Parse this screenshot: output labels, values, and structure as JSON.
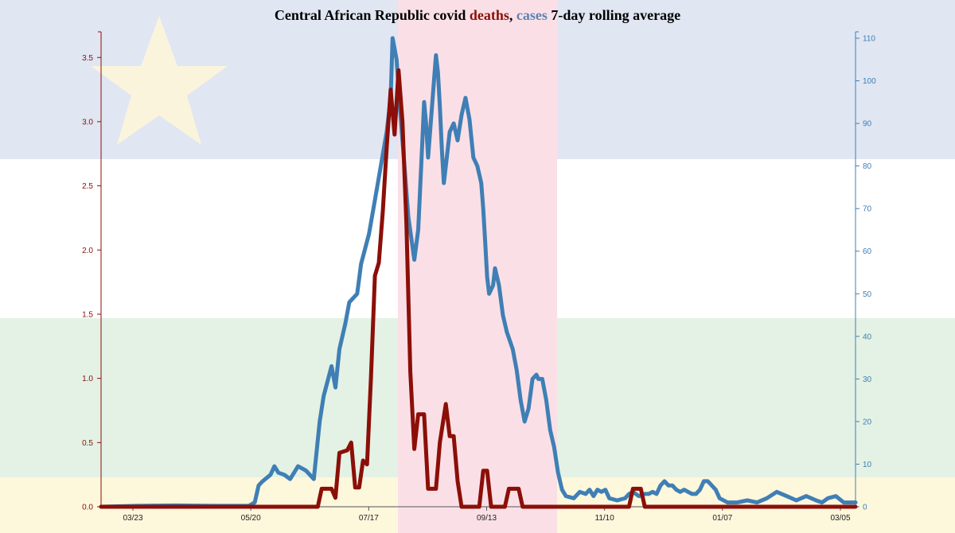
{
  "chart_data": {
    "type": "line",
    "title": {
      "prefix": "Central African Republic covid ",
      "deaths_word": "deaths",
      "separator": ", ",
      "cases_word": "cases",
      "suffix": " 7-day rolling average"
    },
    "x_ticks": [
      "03/23",
      "05/20",
      "07/17",
      "09/13",
      "11/10",
      "01/07",
      "03/05"
    ],
    "y_left": {
      "min": 0,
      "max": 3.7,
      "ticks": [
        "0.0",
        "0.5",
        "1.0",
        "1.5",
        "2.0",
        "2.5",
        "3.0",
        "3.5"
      ]
    },
    "y_right": {
      "min": 0,
      "max": 111.5,
      "ticks": [
        "0",
        "10",
        "20",
        "30",
        "40",
        "50",
        "60",
        "70",
        "80",
        "90",
        "100",
        "110"
      ]
    },
    "x_range_days": [
      -18,
      365
    ],
    "series": [
      {
        "name": "cases",
        "axis": "right",
        "color": "#3f7fb5",
        "points": [
          [
            -18,
            0
          ],
          [
            0,
            0.2
          ],
          [
            20,
            0.3
          ],
          [
            40,
            0.2
          ],
          [
            57,
            0.2
          ],
          [
            60,
            1
          ],
          [
            62,
            5
          ],
          [
            64,
            6
          ],
          [
            68,
            7.5
          ],
          [
            70,
            9.5
          ],
          [
            72,
            8
          ],
          [
            75,
            7.5
          ],
          [
            78,
            6.5
          ],
          [
            82,
            9.5
          ],
          [
            86,
            8.5
          ],
          [
            90,
            6.5
          ],
          [
            93,
            20
          ],
          [
            95,
            26
          ],
          [
            99,
            33
          ],
          [
            101,
            28
          ],
          [
            103,
            37
          ],
          [
            106,
            43
          ],
          [
            108,
            48
          ],
          [
            112,
            50
          ],
          [
            114,
            57
          ],
          [
            118,
            64
          ],
          [
            121,
            72
          ],
          [
            124,
            80
          ],
          [
            127,
            88
          ],
          [
            129,
            96
          ],
          [
            130,
            110
          ],
          [
            132,
            105
          ],
          [
            134,
            92
          ],
          [
            136,
            80
          ],
          [
            138,
            68
          ],
          [
            141,
            58
          ],
          [
            143,
            65
          ],
          [
            145,
            85
          ],
          [
            146,
            95
          ],
          [
            147,
            90
          ],
          [
            148,
            82
          ],
          [
            149,
            88
          ],
          [
            151,
            100
          ],
          [
            152,
            106
          ],
          [
            153,
            102
          ],
          [
            154,
            94
          ],
          [
            155,
            84
          ],
          [
            156,
            76
          ],
          [
            157,
            80
          ],
          [
            159,
            88
          ],
          [
            161,
            90
          ],
          [
            163,
            86
          ],
          [
            165,
            92
          ],
          [
            167,
            96
          ],
          [
            169,
            91
          ],
          [
            171,
            82
          ],
          [
            173,
            80
          ],
          [
            175,
            76
          ],
          [
            176,
            70
          ],
          [
            177,
            62
          ],
          [
            178,
            54
          ],
          [
            179,
            50
          ],
          [
            181,
            52
          ],
          [
            182,
            56
          ],
          [
            184,
            52
          ],
          [
            186,
            45
          ],
          [
            188,
            41
          ],
          [
            191,
            37
          ],
          [
            193,
            32
          ],
          [
            195,
            25
          ],
          [
            197,
            20
          ],
          [
            199,
            23
          ],
          [
            201,
            30
          ],
          [
            203,
            31
          ],
          [
            204,
            30
          ],
          [
            206,
            30
          ],
          [
            208,
            25
          ],
          [
            210,
            18
          ],
          [
            212,
            14
          ],
          [
            214,
            8
          ],
          [
            216,
            4
          ],
          [
            218,
            2.5
          ],
          [
            222,
            2
          ],
          [
            225,
            3.5
          ],
          [
            228,
            3
          ],
          [
            230,
            4
          ],
          [
            232,
            2.5
          ],
          [
            234,
            4
          ],
          [
            236,
            3.5
          ],
          [
            238,
            4
          ],
          [
            240,
            2
          ],
          [
            244,
            1.5
          ],
          [
            248,
            2
          ],
          [
            250,
            3
          ],
          [
            252,
            3.5
          ],
          [
            255,
            2.5
          ],
          [
            258,
            3
          ],
          [
            260,
            3
          ],
          [
            262,
            3.5
          ],
          [
            264,
            3
          ],
          [
            266,
            5
          ],
          [
            268,
            6
          ],
          [
            270,
            5
          ],
          [
            272,
            5
          ],
          [
            274,
            4
          ],
          [
            276,
            3.5
          ],
          [
            278,
            4
          ],
          [
            280,
            3.5
          ],
          [
            282,
            3
          ],
          [
            284,
            3
          ],
          [
            286,
            4
          ],
          [
            288,
            6
          ],
          [
            290,
            6
          ],
          [
            292,
            5
          ],
          [
            294,
            4
          ],
          [
            296,
            2
          ],
          [
            300,
            1
          ],
          [
            305,
            1
          ],
          [
            310,
            1.5
          ],
          [
            315,
            1
          ],
          [
            320,
            2
          ],
          [
            325,
            3.5
          ],
          [
            330,
            2.5
          ],
          [
            335,
            1.5
          ],
          [
            340,
            2.5
          ],
          [
            345,
            1.5
          ],
          [
            348,
            1
          ],
          [
            351,
            2
          ],
          [
            355,
            2.5
          ],
          [
            359,
            1
          ],
          [
            362,
            1
          ],
          [
            365,
            1
          ]
        ]
      },
      {
        "name": "deaths",
        "axis": "left",
        "color": "#8b0f08",
        "points": [
          [
            -18,
            0
          ],
          [
            80,
            0
          ],
          [
            92,
            0
          ],
          [
            94,
            0.14
          ],
          [
            96,
            0.14
          ],
          [
            99,
            0.14
          ],
          [
            101,
            0.07
          ],
          [
            103,
            0.42
          ],
          [
            107,
            0.44
          ],
          [
            109,
            0.5
          ],
          [
            111,
            0.15
          ],
          [
            113,
            0.15
          ],
          [
            115,
            0.36
          ],
          [
            117,
            0.33
          ],
          [
            119,
            1.0
          ],
          [
            121,
            1.8
          ],
          [
            123,
            1.9
          ],
          [
            125,
            2.3
          ],
          [
            127,
            2.8
          ],
          [
            129,
            3.25
          ],
          [
            131,
            2.9
          ],
          [
            133,
            3.4
          ],
          [
            135,
            3.0
          ],
          [
            137,
            2.2
          ],
          [
            139,
            1.05
          ],
          [
            141,
            0.45
          ],
          [
            143,
            0.72
          ],
          [
            146,
            0.72
          ],
          [
            148,
            0.14
          ],
          [
            152,
            0.14
          ],
          [
            154,
            0.5
          ],
          [
            157,
            0.8
          ],
          [
            159,
            0.55
          ],
          [
            161,
            0.55
          ],
          [
            163,
            0.2
          ],
          [
            165,
            0
          ],
          [
            174,
            0
          ],
          [
            176,
            0.28
          ],
          [
            178,
            0.28
          ],
          [
            180,
            0
          ],
          [
            187,
            0
          ],
          [
            189,
            0.14
          ],
          [
            194,
            0.14
          ],
          [
            196,
            0
          ],
          [
            250,
            0
          ],
          [
            252,
            0.14
          ],
          [
            256,
            0.14
          ],
          [
            258,
            0
          ],
          [
            365,
            0
          ]
        ]
      }
    ],
    "grid": false,
    "legend": "none (title words act as legend)"
  }
}
